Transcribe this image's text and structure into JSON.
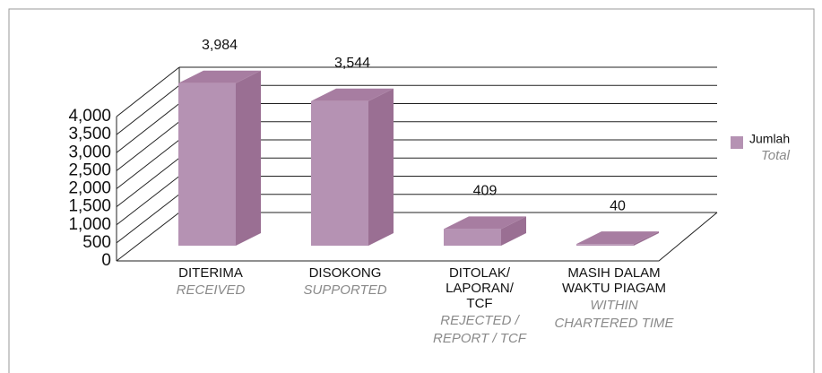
{
  "chart_data": {
    "type": "bar3d",
    "categories": [
      [
        "DITERIMA"
      ],
      [
        "DISOKONG"
      ],
      [
        "DITOLAK/",
        "LAPORAN/",
        "TCF"
      ],
      [
        "MASIH DALAM",
        "WAKTU PIAGAM"
      ]
    ],
    "categories_en": [
      [
        "RECEIVED"
      ],
      [
        "SUPPORTED"
      ],
      [
        "REJECTED /",
        "REPORT / TCF"
      ],
      [
        "WITHIN",
        "CHARTERED TIME"
      ]
    ],
    "series": [
      {
        "name": "Jumlah",
        "name_en": "Total",
        "color": "#b592b3",
        "values": [
          3984,
          3544,
          409,
          40
        ],
        "value_labels": [
          "3,984",
          "3,544",
          "409",
          "40"
        ]
      }
    ],
    "ylim": [
      0,
      4000
    ],
    "yticks": [
      0,
      500,
      {
        "value": 1000,
        "label": "1,000"
      },
      {
        "value": 1500,
        "label": "1,500"
      },
      {
        "value": 2000,
        "label": "2,000"
      },
      {
        "value": 2500,
        "label": "2,500"
      },
      {
        "value": 3000,
        "label": "3,000"
      },
      {
        "value": 3500,
        "label": "3,500"
      },
      {
        "value": 4000,
        "label": "4,000"
      }
    ],
    "grid": true,
    "legend": "right"
  }
}
